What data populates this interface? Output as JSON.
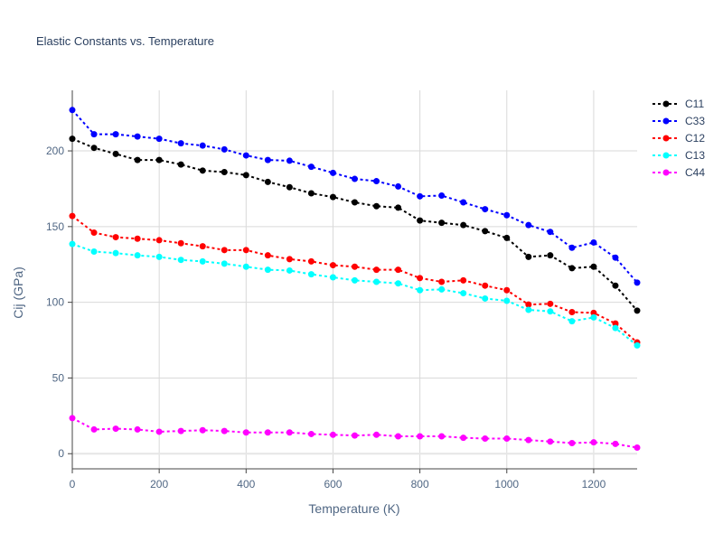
{
  "chart_data": {
    "type": "line",
    "title": "Elastic Constants vs. Temperature",
    "xlabel": "Temperature (K)",
    "ylabel": "Cij (GPa)",
    "xlim": [
      0,
      1300
    ],
    "ylim": [
      -10,
      240
    ],
    "xticks": [
      0,
      200,
      400,
      600,
      800,
      1000,
      1200
    ],
    "yticks": [
      0,
      50,
      100,
      150,
      200
    ],
    "grid": true,
    "legend_position": "right",
    "x": [
      0,
      50,
      100,
      150,
      200,
      250,
      300,
      350,
      400,
      450,
      500,
      550,
      600,
      650,
      700,
      750,
      800,
      850,
      900,
      950,
      1000,
      1050,
      1100,
      1150,
      1200,
      1250,
      1300
    ],
    "series": [
      {
        "name": "C11",
        "color": "#000000",
        "values": [
          208,
          202,
          198,
          194,
          194,
          191,
          187,
          186,
          184,
          179.5,
          176,
          172,
          169.5,
          166,
          163.5,
          162.5,
          154,
          152.5,
          151,
          147,
          142.5,
          130,
          131,
          122.5,
          123.5,
          111,
          94.5
        ]
      },
      {
        "name": "C33",
        "color": "#0000ff",
        "values": [
          227,
          211,
          211,
          209.5,
          208,
          205,
          203.5,
          201,
          197,
          194,
          193.5,
          189.5,
          185.5,
          181.5,
          180,
          176.5,
          170,
          170.5,
          166,
          161.5,
          157.5,
          151,
          146.5,
          136,
          139.5,
          129.5,
          113
        ]
      },
      {
        "name": "C12",
        "color": "#ff0000",
        "values": [
          157,
          146,
          143,
          142,
          141,
          139,
          137,
          134.5,
          134.5,
          131,
          128.5,
          127,
          124.5,
          123.5,
          121.5,
          121.5,
          116,
          113.5,
          114.5,
          111,
          108,
          98.5,
          99,
          93.5,
          93,
          86,
          73.5
        ]
      },
      {
        "name": "C13",
        "color": "#00ffff",
        "values": [
          138.5,
          133.5,
          132.5,
          131,
          130,
          128,
          127,
          125.5,
          123.5,
          121.5,
          121,
          118.5,
          116.5,
          114.5,
          113.5,
          112.5,
          108,
          108.5,
          106,
          102.5,
          101,
          95,
          94,
          87.5,
          90,
          83,
          71.5
        ]
      },
      {
        "name": "C44",
        "color": "#ff00ff",
        "values": [
          23.5,
          16,
          16.5,
          16,
          14.5,
          15,
          15.5,
          15,
          14,
          14,
          14,
          13,
          12.5,
          12,
          12.5,
          11.5,
          11.5,
          11.5,
          10.5,
          10,
          10,
          9,
          8,
          7,
          7.5,
          6.5,
          4
        ]
      }
    ]
  }
}
